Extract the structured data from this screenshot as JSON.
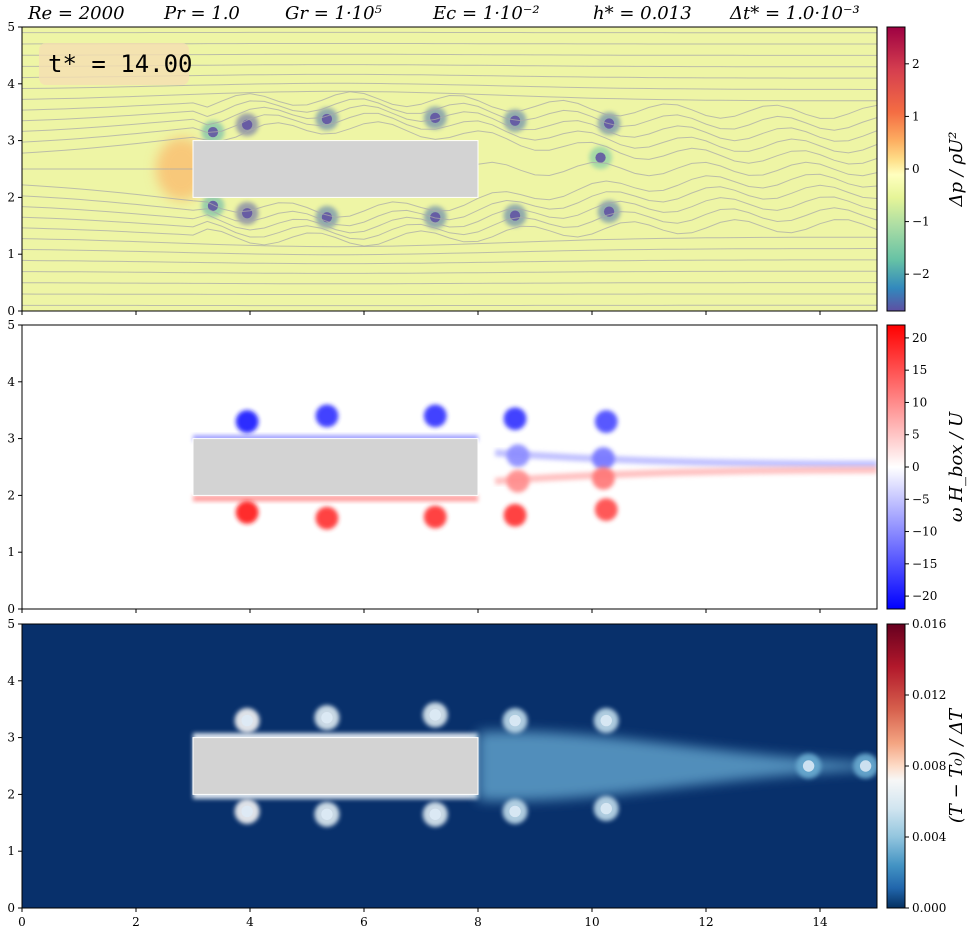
{
  "header": {
    "re": "Re = 2000",
    "pr": "Pr = 1.0",
    "gr": "Gr = 1·10⁵",
    "ec": "Ec = 1·10⁻²",
    "h": "h* = 0.013",
    "dt": "Δt* = 1.0·10⁻³"
  },
  "time_label": "t* = 14.00",
  "colors": {
    "box": "#d3d3d3",
    "streamline": "#aaaaaa",
    "pressure_bg": "#eef5a5",
    "temperature_bg": "#08306b",
    "vorticity_pos": "#ff0000",
    "vorticity_neg": "#0000ff"
  },
  "chart_data": [
    {
      "type": "heatmap",
      "field": "pressure",
      "colormap": "Spectral",
      "colorbar_label": "Δp / ρU²",
      "colorbar_ticks": [
        "2",
        "1",
        "0",
        "−1",
        "−2"
      ],
      "colorbar_tick_values": [
        2,
        1,
        0,
        -1,
        -2
      ],
      "clim": [
        -2.7,
        2.7
      ],
      "xlim": [
        0,
        15
      ],
      "ylim": [
        0,
        5
      ],
      "ytick_labels": [
        "0",
        "1",
        "2",
        "3",
        "4",
        "5"
      ],
      "obstacle": {
        "x": [
          3,
          8
        ],
        "y": [
          2,
          3
        ]
      },
      "streamlines": true,
      "vortices": [
        {
          "x": 3.35,
          "y": 3.15,
          "v": -1.8
        },
        {
          "x": 3.35,
          "y": 1.85,
          "v": -1.8
        },
        {
          "x": 3.95,
          "y": 3.28,
          "v": -2.6
        },
        {
          "x": 3.95,
          "y": 1.72,
          "v": -2.6
        },
        {
          "x": 5.35,
          "y": 3.38,
          "v": -2.4
        },
        {
          "x": 5.35,
          "y": 1.65,
          "v": -2.4
        },
        {
          "x": 7.25,
          "y": 3.4,
          "v": -2.4
        },
        {
          "x": 7.25,
          "y": 1.65,
          "v": -2.4
        },
        {
          "x": 8.65,
          "y": 3.35,
          "v": -2.4
        },
        {
          "x": 8.65,
          "y": 1.68,
          "v": -2.4
        },
        {
          "x": 10.3,
          "y": 3.3,
          "v": -2.4
        },
        {
          "x": 10.3,
          "y": 1.75,
          "v": -2.4
        },
        {
          "x": 10.15,
          "y": 2.7,
          "v": -1.6
        }
      ],
      "stagnation": {
        "x": 2.8,
        "y": 2.5,
        "v": 1.0
      }
    },
    {
      "type": "heatmap",
      "field": "vorticity",
      "colormap": "bwr",
      "colorbar_label": "ω H_box / U",
      "colorbar_ticks": [
        "20",
        "15",
        "10",
        "5",
        "0",
        "−5",
        "−10",
        "−15",
        "−20"
      ],
      "colorbar_tick_values": [
        20,
        15,
        10,
        5,
        0,
        -5,
        -10,
        -15,
        -20
      ],
      "clim": [
        -22,
        22
      ],
      "xlim": [
        0,
        15
      ],
      "ylim": [
        0,
        5
      ],
      "ytick_labels": [
        "0",
        "1",
        "2",
        "3",
        "4",
        "5"
      ],
      "obstacle": {
        "x": [
          3,
          8
        ],
        "y": [
          2,
          3
        ]
      },
      "vortices": [
        {
          "x": 3.95,
          "y": 3.3,
          "v": -20
        },
        {
          "x": 3.95,
          "y": 1.7,
          "v": 20
        },
        {
          "x": 5.35,
          "y": 3.4,
          "v": -18
        },
        {
          "x": 5.35,
          "y": 1.6,
          "v": 18
        },
        {
          "x": 7.25,
          "y": 3.4,
          "v": -18
        },
        {
          "x": 7.25,
          "y": 1.62,
          "v": 18
        },
        {
          "x": 8.65,
          "y": 3.35,
          "v": -18
        },
        {
          "x": 8.65,
          "y": 1.65,
          "v": 18
        },
        {
          "x": 10.25,
          "y": 3.3,
          "v": -16
        },
        {
          "x": 10.25,
          "y": 1.75,
          "v": 16
        },
        {
          "x": 8.7,
          "y": 2.7,
          "v": -10
        },
        {
          "x": 8.7,
          "y": 2.25,
          "v": 10
        },
        {
          "x": 10.2,
          "y": 2.65,
          "v": -12
        },
        {
          "x": 10.2,
          "y": 2.3,
          "v": 12
        }
      ]
    },
    {
      "type": "heatmap",
      "field": "temperature",
      "colormap": "RdBu_r",
      "colorbar_label": "(T − T₀) / ΔT",
      "colorbar_ticks": [
        "0.016",
        "0.012",
        "0.008",
        "0.004",
        "0.000"
      ],
      "colorbar_tick_values": [
        0.016,
        0.012,
        0.008,
        0.004,
        0.0
      ],
      "clim": [
        0.0,
        0.016
      ],
      "xlim": [
        0,
        15
      ],
      "ylim": [
        0,
        5
      ],
      "xtick_labels": [
        "0",
        "2",
        "4",
        "6",
        "8",
        "10",
        "12",
        "14"
      ],
      "ytick_labels": [
        "0",
        "1",
        "2",
        "3",
        "4",
        "5"
      ],
      "obstacle": {
        "x": [
          3,
          8
        ],
        "y": [
          2,
          3
        ]
      },
      "vortices": [
        {
          "x": 3.95,
          "y": 3.3,
          "v": 0.008
        },
        {
          "x": 3.95,
          "y": 1.7,
          "v": 0.008
        },
        {
          "x": 5.35,
          "y": 3.35,
          "v": 0.007
        },
        {
          "x": 5.35,
          "y": 1.65,
          "v": 0.007
        },
        {
          "x": 7.25,
          "y": 3.4,
          "v": 0.007
        },
        {
          "x": 7.25,
          "y": 1.65,
          "v": 0.007
        },
        {
          "x": 8.65,
          "y": 3.3,
          "v": 0.006
        },
        {
          "x": 8.65,
          "y": 1.7,
          "v": 0.006
        },
        {
          "x": 10.25,
          "y": 3.3,
          "v": 0.006
        },
        {
          "x": 10.25,
          "y": 1.75,
          "v": 0.006
        },
        {
          "x": 13.8,
          "y": 2.5,
          "v": 0.004
        },
        {
          "x": 14.8,
          "y": 2.5,
          "v": 0.004
        }
      ]
    }
  ]
}
